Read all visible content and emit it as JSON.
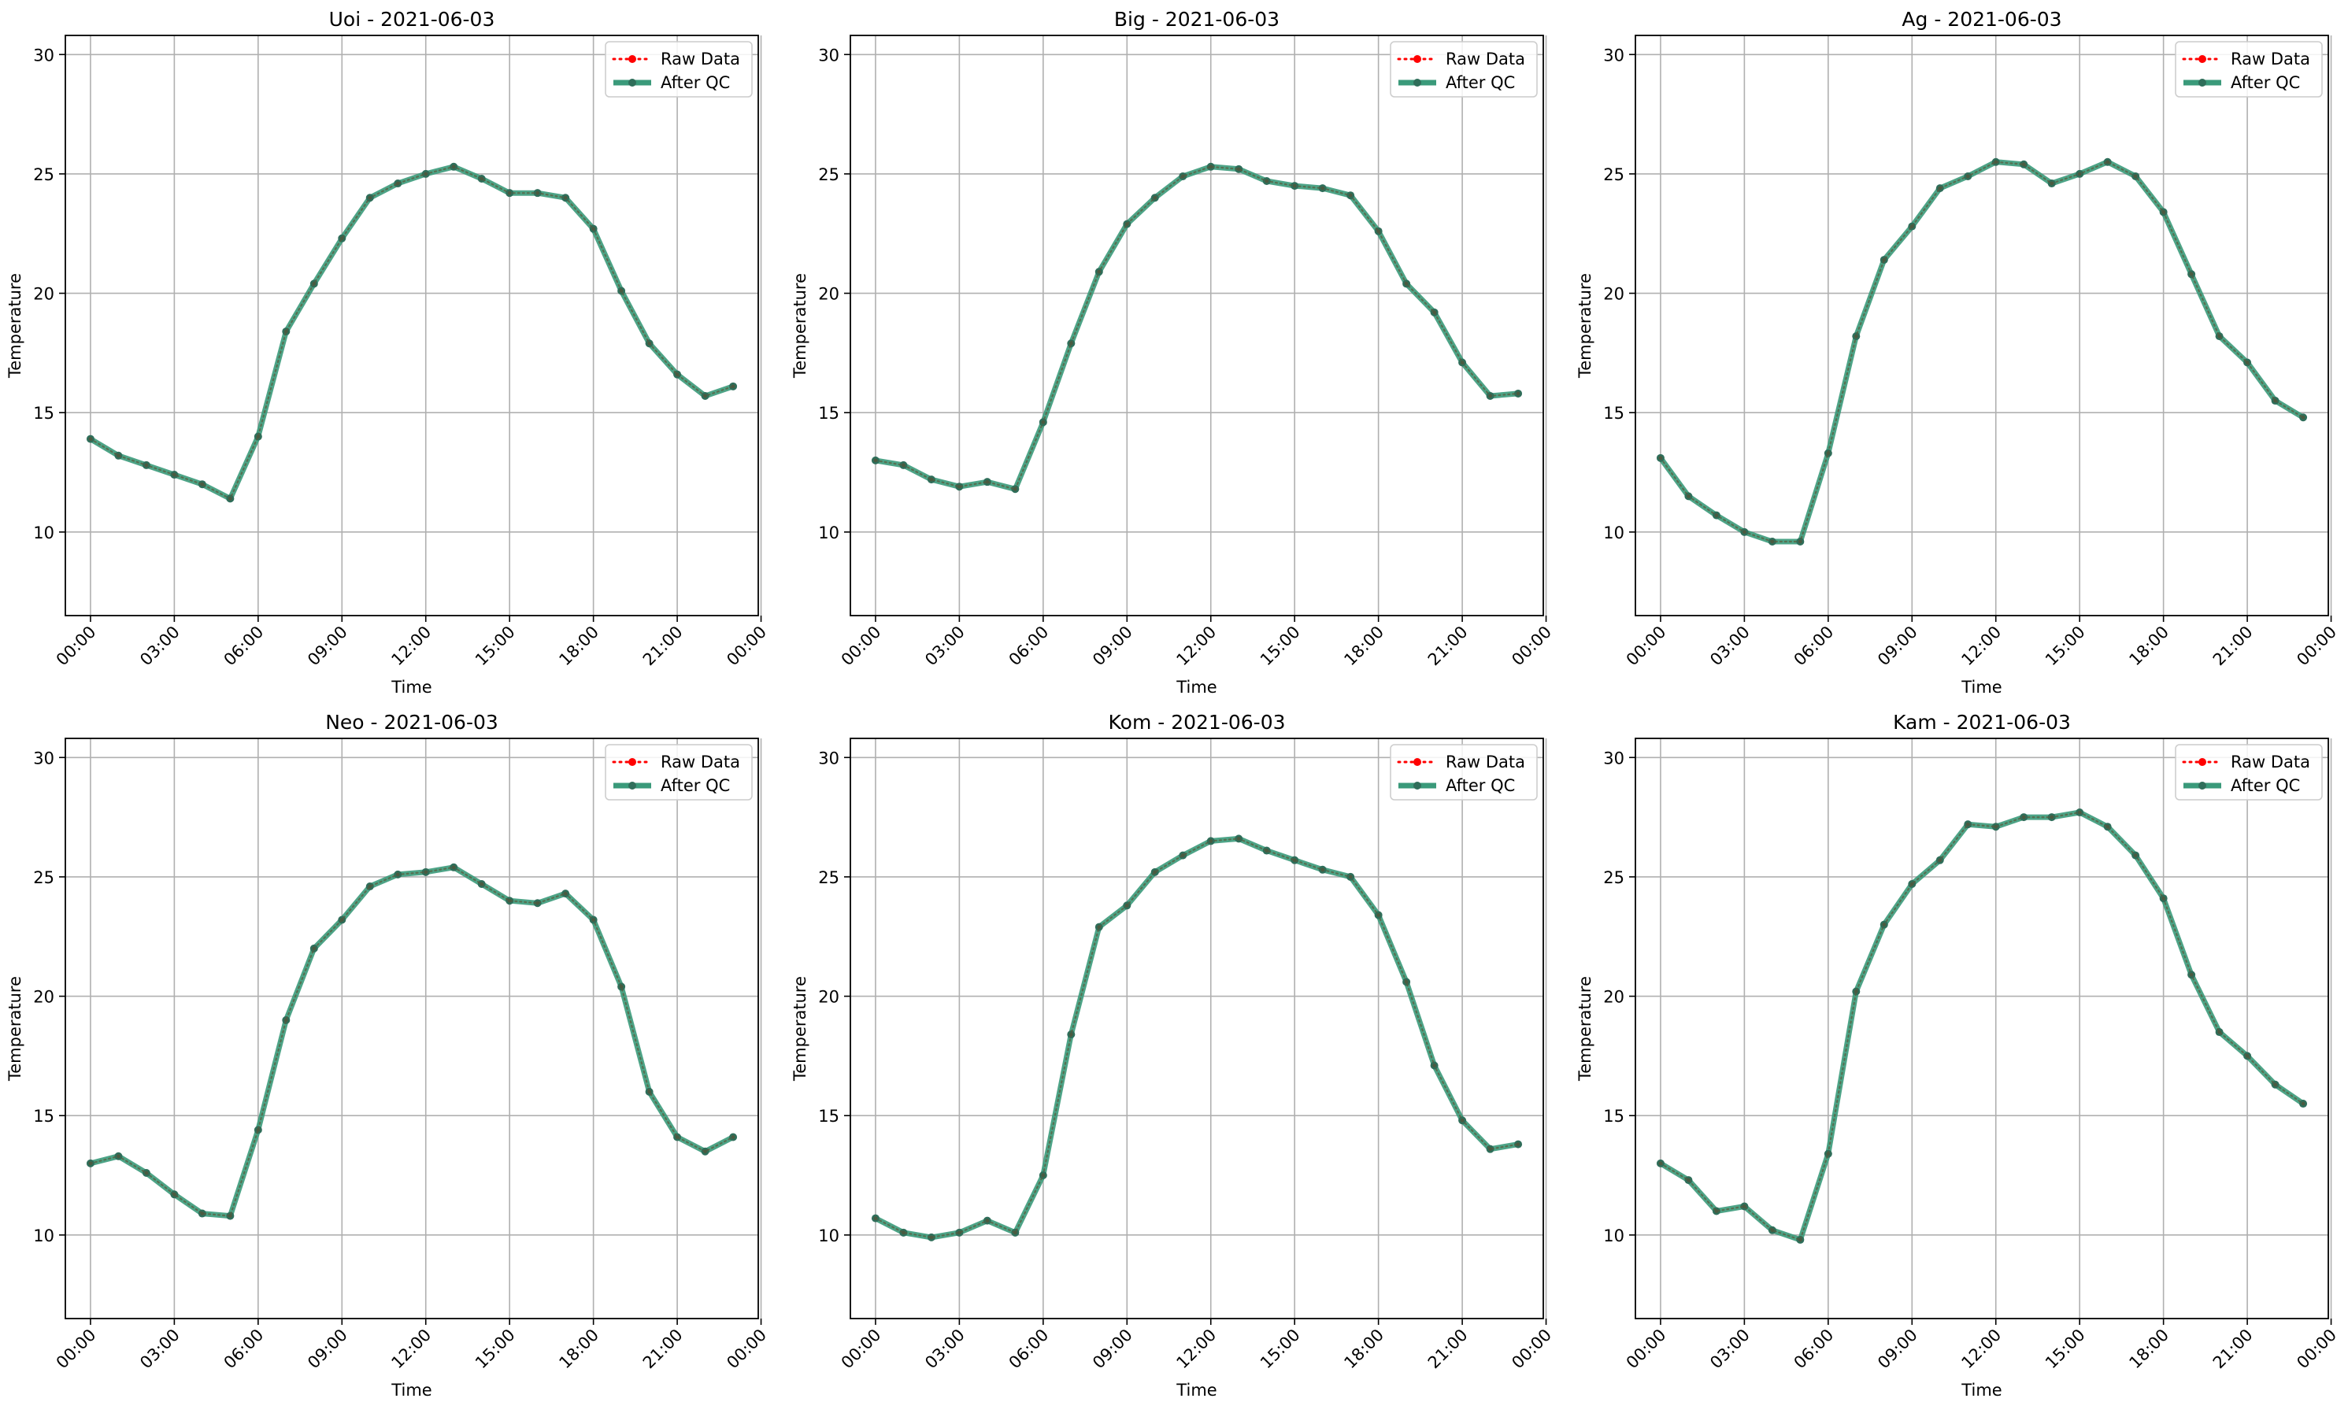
{
  "chart_data": [
    {
      "type": "line",
      "title": "Uoi - 2021-06-03",
      "xlabel": "Time",
      "ylabel": "Temperature",
      "ylim": [
        6.5,
        30.8
      ],
      "xlim": [
        -0.9,
        23.9
      ],
      "yticks": [
        10,
        15,
        20,
        25,
        30
      ],
      "xticks": [
        0,
        3,
        6,
        9,
        12,
        15,
        18,
        21,
        24
      ],
      "xticklabels": [
        "00:00",
        "03:00",
        "06:00",
        "09:00",
        "12:00",
        "15:00",
        "18:00",
        "21:00",
        "00:00"
      ],
      "grid": true,
      "legend": "top-right",
      "x": [
        0,
        1,
        2,
        3,
        4,
        5,
        6,
        7,
        8,
        9,
        10,
        11,
        12,
        13,
        14,
        15,
        16,
        17,
        18,
        19,
        20,
        21,
        22,
        23
      ],
      "series": [
        {
          "name": "Raw Data",
          "values": [
            13.9,
            13.2,
            12.8,
            12.4,
            12.0,
            11.4,
            14.0,
            18.4,
            20.4,
            22.3,
            24.0,
            24.6,
            25.0,
            25.3,
            24.8,
            24.2,
            24.2,
            24.0,
            22.7,
            20.1,
            17.9,
            16.6,
            15.7,
            16.1
          ]
        },
        {
          "name": "After QC",
          "values": [
            13.9,
            13.2,
            12.8,
            12.4,
            12.0,
            11.4,
            14.0,
            18.4,
            20.4,
            22.3,
            24.0,
            24.6,
            25.0,
            25.3,
            24.8,
            24.2,
            24.2,
            24.0,
            22.7,
            20.1,
            17.9,
            16.6,
            15.7,
            16.1
          ]
        }
      ]
    },
    {
      "type": "line",
      "title": "Big - 2021-06-03",
      "xlabel": "Time",
      "ylabel": "Temperature",
      "ylim": [
        6.5,
        30.8
      ],
      "xlim": [
        -0.9,
        23.9
      ],
      "yticks": [
        10,
        15,
        20,
        25,
        30
      ],
      "xticks": [
        0,
        3,
        6,
        9,
        12,
        15,
        18,
        21,
        24
      ],
      "xticklabels": [
        "00:00",
        "03:00",
        "06:00",
        "09:00",
        "12:00",
        "15:00",
        "18:00",
        "21:00",
        "00:00"
      ],
      "grid": true,
      "legend": "top-right",
      "x": [
        0,
        1,
        2,
        3,
        4,
        5,
        6,
        7,
        8,
        9,
        10,
        11,
        12,
        13,
        14,
        15,
        16,
        17,
        18,
        19,
        20,
        21,
        22,
        23
      ],
      "series": [
        {
          "name": "Raw Data",
          "values": [
            13.0,
            12.8,
            12.2,
            11.9,
            12.1,
            11.8,
            14.6,
            17.9,
            20.9,
            22.9,
            24.0,
            24.9,
            25.3,
            25.2,
            24.7,
            24.5,
            24.4,
            24.1,
            22.6,
            20.4,
            19.2,
            17.1,
            15.7,
            15.8
          ]
        },
        {
          "name": "After QC",
          "values": [
            13.0,
            12.8,
            12.2,
            11.9,
            12.1,
            11.8,
            14.6,
            17.9,
            20.9,
            22.9,
            24.0,
            24.9,
            25.3,
            25.2,
            24.7,
            24.5,
            24.4,
            24.1,
            22.6,
            20.4,
            19.2,
            17.1,
            15.7,
            15.8
          ]
        }
      ]
    },
    {
      "type": "line",
      "title": "Ag - 2021-06-03",
      "xlabel": "Time",
      "ylabel": "Temperature",
      "ylim": [
        6.5,
        30.8
      ],
      "xlim": [
        -0.9,
        23.9
      ],
      "yticks": [
        10,
        15,
        20,
        25,
        30
      ],
      "xticks": [
        0,
        3,
        6,
        9,
        12,
        15,
        18,
        21,
        24
      ],
      "xticklabels": [
        "00:00",
        "03:00",
        "06:00",
        "09:00",
        "12:00",
        "15:00",
        "18:00",
        "21:00",
        "00:00"
      ],
      "grid": true,
      "legend": "top-right",
      "x": [
        0,
        1,
        2,
        3,
        4,
        5,
        6,
        7,
        8,
        9,
        10,
        11,
        12,
        13,
        14,
        15,
        16,
        17,
        18,
        19,
        20,
        21,
        22,
        23
      ],
      "series": [
        {
          "name": "Raw Data",
          "values": [
            13.1,
            11.5,
            10.7,
            10.0,
            9.6,
            9.6,
            13.3,
            18.2,
            21.4,
            22.8,
            24.4,
            24.9,
            25.5,
            25.4,
            24.6,
            25.0,
            25.5,
            24.9,
            23.4,
            20.8,
            18.2,
            17.1,
            15.5,
            14.8
          ]
        },
        {
          "name": "After QC",
          "values": [
            13.1,
            11.5,
            10.7,
            10.0,
            9.6,
            9.6,
            13.3,
            18.2,
            21.4,
            22.8,
            24.4,
            24.9,
            25.5,
            25.4,
            24.6,
            25.0,
            25.5,
            24.9,
            23.4,
            20.8,
            18.2,
            17.1,
            15.5,
            14.8
          ]
        }
      ]
    },
    {
      "type": "line",
      "title": "Neo - 2021-06-03",
      "xlabel": "Time",
      "ylabel": "Temperature",
      "ylim": [
        6.5,
        30.8
      ],
      "xlim": [
        -0.9,
        23.9
      ],
      "yticks": [
        10,
        15,
        20,
        25,
        30
      ],
      "xticks": [
        0,
        3,
        6,
        9,
        12,
        15,
        18,
        21,
        24
      ],
      "xticklabels": [
        "00:00",
        "03:00",
        "06:00",
        "09:00",
        "12:00",
        "15:00",
        "18:00",
        "21:00",
        "00:00"
      ],
      "grid": true,
      "legend": "top-right",
      "x": [
        0,
        1,
        2,
        3,
        4,
        5,
        6,
        7,
        8,
        9,
        10,
        11,
        12,
        13,
        14,
        15,
        16,
        17,
        18,
        19,
        20,
        21,
        22,
        23
      ],
      "series": [
        {
          "name": "Raw Data",
          "values": [
            13.0,
            13.3,
            12.6,
            11.7,
            10.9,
            10.8,
            14.4,
            19.0,
            22.0,
            23.2,
            24.6,
            25.1,
            25.2,
            25.4,
            24.7,
            24.0,
            23.9,
            24.3,
            23.2,
            20.4,
            16.0,
            14.1,
            13.5,
            14.1
          ]
        },
        {
          "name": "After QC",
          "values": [
            13.0,
            13.3,
            12.6,
            11.7,
            10.9,
            10.8,
            14.4,
            19.0,
            22.0,
            23.2,
            24.6,
            25.1,
            25.2,
            25.4,
            24.7,
            24.0,
            23.9,
            24.3,
            23.2,
            20.4,
            16.0,
            14.1,
            13.5,
            14.1
          ]
        }
      ]
    },
    {
      "type": "line",
      "title": "Kom - 2021-06-03",
      "xlabel": "Time",
      "ylabel": "Temperature",
      "ylim": [
        6.5,
        30.8
      ],
      "xlim": [
        -0.9,
        23.9
      ],
      "yticks": [
        10,
        15,
        20,
        25,
        30
      ],
      "xticks": [
        0,
        3,
        6,
        9,
        12,
        15,
        18,
        21,
        24
      ],
      "xticklabels": [
        "00:00",
        "03:00",
        "06:00",
        "09:00",
        "12:00",
        "15:00",
        "18:00",
        "21:00",
        "00:00"
      ],
      "grid": true,
      "legend": "top-right",
      "x": [
        0,
        1,
        2,
        3,
        4,
        5,
        6,
        7,
        8,
        9,
        10,
        11,
        12,
        13,
        14,
        15,
        16,
        17,
        18,
        19,
        20,
        21,
        22,
        23
      ],
      "series": [
        {
          "name": "Raw Data",
          "values": [
            10.7,
            10.1,
            9.9,
            10.1,
            10.6,
            10.1,
            12.5,
            18.4,
            22.9,
            23.8,
            25.2,
            25.9,
            26.5,
            26.6,
            26.1,
            25.7,
            25.3,
            25.0,
            23.4,
            20.6,
            17.1,
            14.8,
            13.6,
            13.8
          ]
        },
        {
          "name": "After QC",
          "values": [
            10.7,
            10.1,
            9.9,
            10.1,
            10.6,
            10.1,
            12.5,
            18.4,
            22.9,
            23.8,
            25.2,
            25.9,
            26.5,
            26.6,
            26.1,
            25.7,
            25.3,
            25.0,
            23.4,
            20.6,
            17.1,
            14.8,
            13.6,
            13.8
          ]
        }
      ]
    },
    {
      "type": "line",
      "title": "Kam - 2021-06-03",
      "xlabel": "Time",
      "ylabel": "Temperature",
      "ylim": [
        6.5,
        30.8
      ],
      "xlim": [
        -0.9,
        23.9
      ],
      "yticks": [
        10,
        15,
        20,
        25,
        30
      ],
      "xticks": [
        0,
        3,
        6,
        9,
        12,
        15,
        18,
        21,
        24
      ],
      "xticklabels": [
        "00:00",
        "03:00",
        "06:00",
        "09:00",
        "12:00",
        "15:00",
        "18:00",
        "21:00",
        "00:00"
      ],
      "grid": true,
      "legend": "top-right",
      "x": [
        0,
        1,
        2,
        3,
        4,
        5,
        6,
        7,
        8,
        9,
        10,
        11,
        12,
        13,
        14,
        15,
        16,
        17,
        18,
        19,
        20,
        21,
        22,
        23
      ],
      "series": [
        {
          "name": "Raw Data",
          "values": [
            13.0,
            12.3,
            11.0,
            11.2,
            10.2,
            9.8,
            13.4,
            20.2,
            23.0,
            24.7,
            25.7,
            27.2,
            27.1,
            27.5,
            27.5,
            27.7,
            27.1,
            25.9,
            24.1,
            20.9,
            18.5,
            17.5,
            16.3,
            15.5
          ]
        },
        {
          "name": "After QC",
          "values": [
            13.0,
            12.3,
            11.0,
            11.2,
            10.2,
            9.8,
            13.4,
            20.2,
            23.0,
            24.7,
            25.7,
            27.2,
            27.1,
            27.5,
            27.5,
            27.7,
            27.1,
            25.9,
            24.1,
            20.9,
            18.5,
            17.5,
            16.3,
            15.5
          ]
        }
      ]
    }
  ],
  "colors": {
    "raw": "#ff0000",
    "qc": "#3a9a7a",
    "qc_marker": "#2f6e5a",
    "grid": "#b0b0b0"
  }
}
